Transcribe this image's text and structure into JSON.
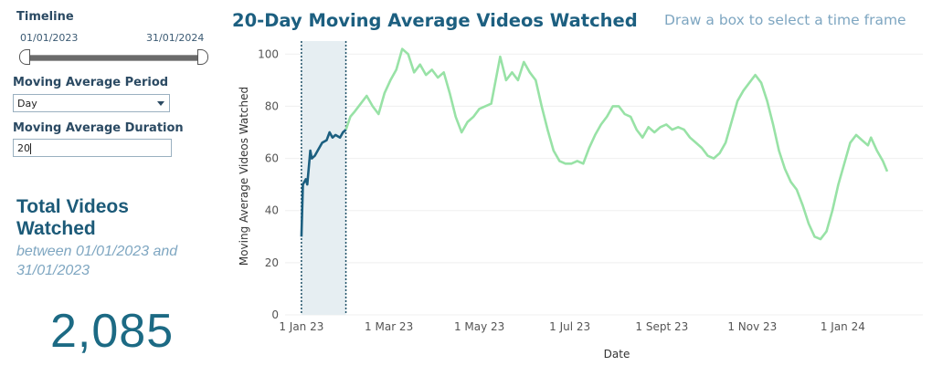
{
  "filters": {
    "timeline_label": "Timeline",
    "timeline_start": "01/01/2023",
    "timeline_end": "31/01/2024",
    "period_label": "Moving Average Period",
    "period_value": "Day",
    "duration_label": "Moving Average Duration",
    "duration_value": "20"
  },
  "summary": {
    "title": "Total Videos Watched",
    "subtitle": "between 01/01/2023 and 31/01/2023",
    "total": "2,085"
  },
  "hint": "Draw a box to select a time frame",
  "colors": {
    "selected": "#1c5f80",
    "unselected": "#98e2a6",
    "selection_box": "#e6eef2"
  },
  "chart_data": {
    "type": "line",
    "title": "20-Day Moving Average Videos Watched",
    "xlabel": "Date",
    "ylabel": "Moving Average Videos Watched",
    "ylim": [
      0,
      105
    ],
    "xlim": [
      "2022-12-21",
      "2024-02-24"
    ],
    "yticks": [
      0,
      20,
      40,
      60,
      80,
      100
    ],
    "xticks": [
      {
        "date": "2023-01-01",
        "label": "1 Jan 23"
      },
      {
        "date": "2023-03-01",
        "label": "1 Mar 23"
      },
      {
        "date": "2023-05-01",
        "label": "1 May 23"
      },
      {
        "date": "2023-07-01",
        "label": "1 Jul 23"
      },
      {
        "date": "2023-09-01",
        "label": "1 Sept 23"
      },
      {
        "date": "2023-11-01",
        "label": "1 Nov 23"
      },
      {
        "date": "2024-01-01",
        "label": "1 Jan 24"
      }
    ],
    "grid": true,
    "selection": {
      "start": "2023-01-01",
      "end": "2023-01-31"
    },
    "series": [
      {
        "values": [
          [
            "2023-01-01",
            30
          ],
          [
            "2023-01-02",
            50
          ],
          [
            "2023-01-04",
            52
          ],
          [
            "2023-01-05",
            50
          ],
          [
            "2023-01-07",
            63
          ],
          [
            "2023-01-08",
            60
          ],
          [
            "2023-01-10",
            61
          ],
          [
            "2023-01-12",
            63
          ],
          [
            "2023-01-15",
            66
          ],
          [
            "2023-01-18",
            67
          ],
          [
            "2023-01-20",
            70
          ],
          [
            "2023-01-22",
            68
          ],
          [
            "2023-01-24",
            69
          ],
          [
            "2023-01-27",
            68
          ],
          [
            "2023-01-29",
            70
          ],
          [
            "2023-01-31",
            71
          ],
          [
            "2023-02-03",
            76
          ],
          [
            "2023-02-06",
            78
          ],
          [
            "2023-02-10",
            81
          ],
          [
            "2023-02-14",
            84
          ],
          [
            "2023-02-18",
            80
          ],
          [
            "2023-02-22",
            77
          ],
          [
            "2023-02-26",
            85
          ],
          [
            "2023-03-02",
            90
          ],
          [
            "2023-03-06",
            94
          ],
          [
            "2023-03-10",
            102
          ],
          [
            "2023-03-14",
            100
          ],
          [
            "2023-03-18",
            93
          ],
          [
            "2023-03-22",
            96
          ],
          [
            "2023-03-26",
            92
          ],
          [
            "2023-03-30",
            94
          ],
          [
            "2023-04-03",
            91
          ],
          [
            "2023-04-07",
            93
          ],
          [
            "2023-04-11",
            85
          ],
          [
            "2023-04-15",
            76
          ],
          [
            "2023-04-19",
            70
          ],
          [
            "2023-04-23",
            74
          ],
          [
            "2023-04-27",
            76
          ],
          [
            "2023-05-01",
            79
          ],
          [
            "2023-05-05",
            80
          ],
          [
            "2023-05-09",
            81
          ],
          [
            "2023-05-12",
            90
          ],
          [
            "2023-05-15",
            99
          ],
          [
            "2023-05-19",
            90
          ],
          [
            "2023-05-23",
            93
          ],
          [
            "2023-05-27",
            90
          ],
          [
            "2023-05-31",
            97
          ],
          [
            "2023-06-04",
            93
          ],
          [
            "2023-06-08",
            90
          ],
          [
            "2023-06-12",
            80
          ],
          [
            "2023-06-16",
            71
          ],
          [
            "2023-06-20",
            63
          ],
          [
            "2023-06-24",
            59
          ],
          [
            "2023-06-28",
            58
          ],
          [
            "2023-07-02",
            58
          ],
          [
            "2023-07-06",
            59
          ],
          [
            "2023-07-10",
            58
          ],
          [
            "2023-07-14",
            64
          ],
          [
            "2023-07-18",
            69
          ],
          [
            "2023-07-22",
            73
          ],
          [
            "2023-07-26",
            76
          ],
          [
            "2023-07-30",
            80
          ],
          [
            "2023-08-03",
            80
          ],
          [
            "2023-08-07",
            77
          ],
          [
            "2023-08-11",
            76
          ],
          [
            "2023-08-15",
            71
          ],
          [
            "2023-08-19",
            68
          ],
          [
            "2023-08-23",
            72
          ],
          [
            "2023-08-27",
            70
          ],
          [
            "2023-08-31",
            72
          ],
          [
            "2023-09-04",
            73
          ],
          [
            "2023-09-08",
            71
          ],
          [
            "2023-09-12",
            72
          ],
          [
            "2023-09-16",
            71
          ],
          [
            "2023-09-20",
            68
          ],
          [
            "2023-09-24",
            66
          ],
          [
            "2023-09-28",
            64
          ],
          [
            "2023-10-02",
            61
          ],
          [
            "2023-10-06",
            60
          ],
          [
            "2023-10-10",
            62
          ],
          [
            "2023-10-14",
            66
          ],
          [
            "2023-10-18",
            74
          ],
          [
            "2023-10-22",
            82
          ],
          [
            "2023-10-26",
            86
          ],
          [
            "2023-10-30",
            89
          ],
          [
            "2023-11-03",
            92
          ],
          [
            "2023-11-07",
            89
          ],
          [
            "2023-11-11",
            82
          ],
          [
            "2023-11-15",
            73
          ],
          [
            "2023-11-19",
            63
          ],
          [
            "2023-11-23",
            56
          ],
          [
            "2023-11-27",
            51
          ],
          [
            "2023-12-01",
            48
          ],
          [
            "2023-12-05",
            42
          ],
          [
            "2023-12-09",
            35
          ],
          [
            "2023-12-13",
            30
          ],
          [
            "2023-12-17",
            29
          ],
          [
            "2023-12-21",
            32
          ],
          [
            "2023-12-25",
            40
          ],
          [
            "2023-12-29",
            50
          ],
          [
            "2024-01-02",
            58
          ],
          [
            "2024-01-06",
            66
          ],
          [
            "2024-01-10",
            69
          ],
          [
            "2024-01-14",
            67
          ],
          [
            "2024-01-18",
            65
          ],
          [
            "2024-01-20",
            68
          ],
          [
            "2024-01-24",
            63
          ],
          [
            "2024-01-28",
            59
          ],
          [
            "2024-01-31",
            55
          ]
        ]
      }
    ]
  }
}
